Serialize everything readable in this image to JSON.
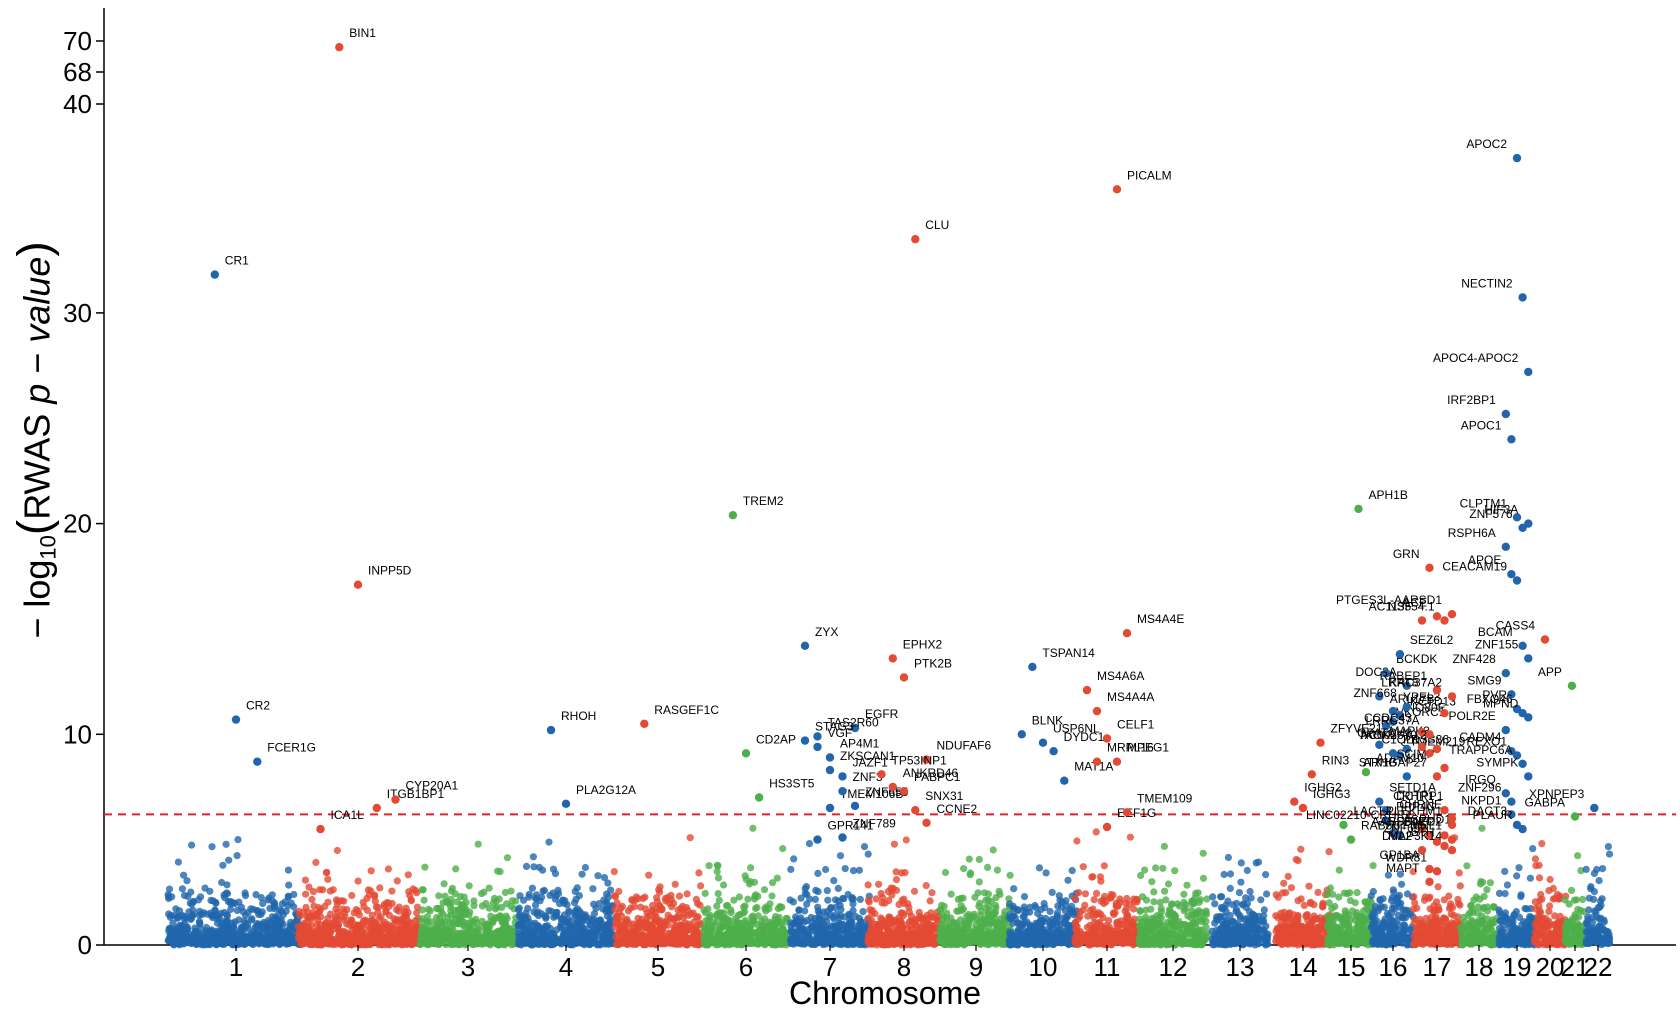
{
  "chart_data": {
    "type": "scatter",
    "subtype": "manhattan",
    "xlabel": "Chromosome",
    "ylabel_parts": {
      "prefix": "− log",
      "sub": "10",
      "open": "(",
      "main": "RWAS ",
      "p": "p",
      "dash": " − ",
      "value": "value",
      "close": ")"
    },
    "y_ticks": [
      "0",
      "10",
      "20",
      "30",
      "40",
      "68",
      "70"
    ],
    "y_axis_note": "broken axis: 0-30 linear, then 40, 68, 70 compressed",
    "threshold": 6.2,
    "threshold_color": "#e8202a",
    "colors": [
      "#2166ac",
      "#e34a33",
      "#4daf4a"
    ],
    "chromosomes": [
      "1",
      "2",
      "3",
      "4",
      "5",
      "6",
      "7",
      "8",
      "9",
      "10",
      "11",
      "12",
      "13",
      "14",
      "15",
      "16",
      "17",
      "18",
      "19",
      "20",
      "21",
      "22"
    ],
    "chrom_x_range": [
      [
        0.5,
        1.5
      ],
      [
        1.5,
        2.5
      ],
      [
        2.5,
        3.5
      ],
      [
        3.5,
        4.5
      ],
      [
        4.5,
        5.5
      ],
      [
        5.5,
        6.5
      ],
      [
        6.5,
        7.5
      ],
      [
        7.5,
        8.5
      ],
      [
        8.5,
        9.5
      ],
      [
        9.5,
        10.5
      ],
      [
        10.5,
        11.5
      ],
      [
        11.5,
        12.5
      ],
      [
        12.5,
        13.5
      ],
      [
        13.5,
        14.5
      ],
      [
        14.5,
        15.5
      ],
      [
        15.5,
        16.5
      ],
      [
        16.5,
        17.5
      ],
      [
        17.5,
        18.5
      ],
      [
        18.5,
        19.5
      ],
      [
        19.5,
        20.5
      ],
      [
        20.5,
        21.5
      ],
      [
        21.5,
        22.5
      ]
    ],
    "labeled_genes": [
      {
        "gene": "BIN1",
        "chr": "2",
        "y": 69.6
      },
      {
        "gene": "CR1",
        "chr": "1",
        "y": 31.8
      },
      {
        "gene": "INPP5D",
        "chr": "2",
        "y": 17.1
      },
      {
        "gene": "CR2",
        "chr": "1",
        "y": 10.7
      },
      {
        "gene": "FCER1G",
        "chr": "1",
        "y": 8.7
      },
      {
        "gene": "ITGB1BP1",
        "chr": "2",
        "y": 6.5
      },
      {
        "gene": "CYP20A1",
        "chr": "2",
        "y": 6.9
      },
      {
        "gene": "ICA1L",
        "chr": "2",
        "y": 5.5
      },
      {
        "gene": "RHOH",
        "chr": "4",
        "y": 10.2
      },
      {
        "gene": "PLA2G12A",
        "chr": "4",
        "y": 6.7
      },
      {
        "gene": "TREM2",
        "chr": "6",
        "y": 20.4
      },
      {
        "gene": "RASGEF1C",
        "chr": "5",
        "y": 10.5
      },
      {
        "gene": "CD2AP",
        "chr": "6",
        "y": 9.1
      },
      {
        "gene": "HS3ST5",
        "chr": "6",
        "y": 7.0
      },
      {
        "gene": "GPR141",
        "chr": "7",
        "y": 5.0
      },
      {
        "gene": "TMEM106B",
        "chr": "7",
        "y": 6.5
      },
      {
        "gene": "JAZF1",
        "chr": "7",
        "y": 8.0
      },
      {
        "gene": "EGFR",
        "chr": "7",
        "y": 10.3
      },
      {
        "gene": "STAG3",
        "chr": "7",
        "y": 9.7
      },
      {
        "gene": "VGF",
        "chr": "7",
        "y": 9.4
      },
      {
        "gene": "AP4M1",
        "chr": "7",
        "y": 8.9
      },
      {
        "gene": "ZNF3",
        "chr": "7",
        "y": 7.3
      },
      {
        "gene": "ZNF655",
        "chr": "7",
        "y": 6.6
      },
      {
        "gene": "ZYX",
        "chr": "7",
        "y": 14.2
      },
      {
        "gene": "EPHX2",
        "chr": "8",
        "y": 13.6
      },
      {
        "gene": "PTK2B",
        "chr": "8",
        "y": 12.7
      },
      {
        "gene": "CLU",
        "chr": "8",
        "y": 33.5
      },
      {
        "gene": "TAS2R60",
        "chr": "7",
        "y": 9.9
      },
      {
        "gene": "NDUFAF6",
        "chr": "8",
        "y": 8.8
      },
      {
        "gene": "TP53INP1",
        "chr": "8",
        "y": 8.1
      },
      {
        "gene": "ZKSCAN1",
        "chr": "7",
        "y": 8.3
      },
      {
        "gene": "ANKRD46",
        "chr": "8",
        "y": 7.5
      },
      {
        "gene": "PABPC1",
        "chr": "8",
        "y": 7.3
      },
      {
        "gene": "SNX31",
        "chr": "8",
        "y": 6.4
      },
      {
        "gene": "CCNE2",
        "chr": "8",
        "y": 5.8
      },
      {
        "gene": "ZNF789",
        "chr": "7",
        "y": 5.1
      },
      {
        "gene": "TSPAN14",
        "chr": "10",
        "y": 13.2
      },
      {
        "gene": "USP6NL",
        "chr": "10",
        "y": 9.6
      },
      {
        "gene": "DYDC1",
        "chr": "10",
        "y": 9.2
      },
      {
        "gene": "MAT1A",
        "chr": "10",
        "y": 7.8
      },
      {
        "gene": "BLNK",
        "chr": "10",
        "y": 10.0
      },
      {
        "gene": "MRPL16",
        "chr": "11",
        "y": 8.7
      },
      {
        "gene": "EEF1G",
        "chr": "11",
        "y": 5.6
      },
      {
        "gene": "PICALM",
        "chr": "11",
        "y": 35.9
      },
      {
        "gene": "MS4A4E",
        "chr": "11",
        "y": 14.8
      },
      {
        "gene": "MS4A6A",
        "chr": "11",
        "y": 12.1
      },
      {
        "gene": "MS4A4A",
        "chr": "11",
        "y": 11.1
      },
      {
        "gene": "CELF1",
        "chr": "11",
        "y": 9.8
      },
      {
        "gene": "MPEG1",
        "chr": "11",
        "y": 8.7
      },
      {
        "gene": "TMEM109",
        "chr": "11",
        "y": 6.3
      },
      {
        "gene": "PPP4C",
        "chr": "16",
        "y": 5.9
      },
      {
        "gene": "ASPHD1",
        "chr": "16",
        "y": 5.3
      },
      {
        "gene": "IGHG2",
        "chr": "14",
        "y": 6.8
      },
      {
        "gene": "IGHG3",
        "chr": "14",
        "y": 6.5
      },
      {
        "gene": "LACTB",
        "chr": "15",
        "y": 5.7
      },
      {
        "gene": "RAB8B",
        "chr": "15",
        "y": 5.0
      },
      {
        "gene": "KIF22",
        "chr": "16",
        "y": 5.2
      },
      {
        "gene": "GP1BA",
        "chr": "17",
        "y": 3.6
      },
      {
        "gene": "WDR81",
        "chr": "17",
        "y": 3.5
      },
      {
        "gene": "APH1B",
        "chr": "15",
        "y": 20.7
      },
      {
        "gene": "ADAM10",
        "chr": "15",
        "y": 8.2
      },
      {
        "gene": "RIN3",
        "chr": "14",
        "y": 8.1
      },
      {
        "gene": "STX1B",
        "chr": "16",
        "y": 8.0
      },
      {
        "gene": "SETD1A",
        "chr": "16",
        "y": 6.8
      },
      {
        "gene": "DCTPP1",
        "chr": "16",
        "y": 6.4
      },
      {
        "gene": "PRSS36",
        "chr": "16",
        "y": 9.1
      },
      {
        "gene": "TMEM219",
        "chr": "16",
        "y": 9.0
      },
      {
        "gene": "ZFYVE21",
        "chr": "14",
        "y": 9.6
      },
      {
        "gene": "TAOK2",
        "chr": "16",
        "y": 9.3
      },
      {
        "gene": "MAPK3",
        "chr": "16",
        "y": 9.5
      },
      {
        "gene": "VKORC1",
        "chr": "16",
        "y": 10.4
      },
      {
        "gene": "INO80E",
        "chr": "16",
        "y": 10.6
      },
      {
        "gene": "KCTD13",
        "chr": "16",
        "y": 10.9
      },
      {
        "gene": "DOC2A",
        "chr": "16",
        "y": 12.3
      },
      {
        "gene": "KAT8",
        "chr": "16",
        "y": 11.8
      },
      {
        "gene": "BCKDK",
        "chr": "16",
        "y": 12.9
      },
      {
        "gene": "YPEL3",
        "chr": "16",
        "y": 11.1
      },
      {
        "gene": "SCIMP",
        "chr": "17",
        "y": 8.4
      },
      {
        "gene": "CHRNE",
        "chr": "17",
        "y": 6.0
      },
      {
        "gene": "DVL2",
        "chr": "17",
        "y": 4.5
      },
      {
        "gene": "MAPT",
        "chr": "17",
        "y": 3.0
      },
      {
        "gene": "SEZ6L2",
        "chr": "16",
        "y": 13.8
      },
      {
        "gene": "ACE",
        "chr": "17",
        "y": 15.6
      },
      {
        "gene": "AC113554.1",
        "chr": "17",
        "y": 15.4
      },
      {
        "gene": "PTGES3L-AARSD1",
        "chr": "17",
        "y": 15.7
      },
      {
        "gene": "ZNF668",
        "chr": "16",
        "y": 11.3
      },
      {
        "gene": "CCDC43",
        "chr": "17",
        "y": 10.1
      },
      {
        "gene": "GRN",
        "chr": "17",
        "y": 17.9
      },
      {
        "gene": "RABEP1",
        "chr": "17",
        "y": 12.1
      },
      {
        "gene": "ARL17B",
        "chr": "17",
        "y": 11.0
      },
      {
        "gene": "LRRC37A2",
        "chr": "17",
        "y": 11.8
      },
      {
        "gene": "GPATCH8",
        "chr": "17",
        "y": 9.4
      },
      {
        "gene": "C1QL1",
        "chr": "17",
        "y": 9.1
      },
      {
        "gene": "ARHGAP27",
        "chr": "17",
        "y": 8.0
      },
      {
        "gene": "ZNF296",
        "chr": "19",
        "y": 6.8
      },
      {
        "gene": "CRHR1",
        "chr": "17",
        "y": 6.4
      },
      {
        "gene": "PLEKHM1",
        "chr": "17",
        "y": 5.7
      },
      {
        "gene": "LINC02210-CRHR1",
        "chr": "17",
        "y": 5.5
      },
      {
        "gene": "AARSD1",
        "chr": "17",
        "y": 5.2
      },
      {
        "gene": "ZNF652",
        "chr": "17",
        "y": 4.9
      },
      {
        "gene": "STH",
        "chr": "17",
        "y": 4.7
      },
      {
        "gene": "MAP3K14",
        "chr": "17",
        "y": 4.5
      },
      {
        "gene": "APOC2",
        "chr": "19",
        "y": 37.4
      },
      {
        "gene": "NECTIN2",
        "chr": "19",
        "y": 30.7
      },
      {
        "gene": "APOC4-APOC2",
        "chr": "19",
        "y": 27.2
      },
      {
        "gene": "IRF2BP1",
        "chr": "19",
        "y": 25.2
      },
      {
        "gene": "APOC1",
        "chr": "19",
        "y": 24.0
      },
      {
        "gene": "CLPTM1",
        "chr": "19",
        "y": 20.3
      },
      {
        "gene": "ZNF576",
        "chr": "19",
        "y": 19.8
      },
      {
        "gene": "HIF3A",
        "chr": "19",
        "y": 20.0
      },
      {
        "gene": "RSPH6A",
        "chr": "19",
        "y": 18.9
      },
      {
        "gene": "APOE",
        "chr": "19",
        "y": 17.6
      },
      {
        "gene": "CEACAM19",
        "chr": "19",
        "y": 17.3
      },
      {
        "gene": "NSF",
        "chr": "17",
        "y": 15.4
      },
      {
        "gene": "CASS4",
        "chr": "20",
        "y": 14.5
      },
      {
        "gene": "BCAM",
        "chr": "19",
        "y": 14.2
      },
      {
        "gene": "ZNF155",
        "chr": "19",
        "y": 13.6
      },
      {
        "gene": "ZNF428",
        "chr": "19",
        "y": 12.9
      },
      {
        "gene": "APP",
        "chr": "21",
        "y": 12.3
      },
      {
        "gene": "SMG9",
        "chr": "19",
        "y": 11.9
      },
      {
        "gene": "PVR",
        "chr": "19",
        "y": 11.2
      },
      {
        "gene": "FBXO46",
        "chr": "19",
        "y": 11.0
      },
      {
        "gene": "MPND",
        "chr": "19",
        "y": 10.8
      },
      {
        "gene": "POLR2E",
        "chr": "19",
        "y": 10.2
      },
      {
        "gene": "LRRC37A",
        "chr": "17",
        "y": 10.0
      },
      {
        "gene": "AC005670.2",
        "chr": "17",
        "y": 9.3
      },
      {
        "gene": "CADM4",
        "chr": "19",
        "y": 9.2
      },
      {
        "gene": "REXO1",
        "chr": "19",
        "y": 9.0
      },
      {
        "gene": "TRAPPC6A",
        "chr": "19",
        "y": 8.6
      },
      {
        "gene": "SYMPK",
        "chr": "19",
        "y": 8.0
      },
      {
        "gene": "IRGQ",
        "chr": "19",
        "y": 7.2
      },
      {
        "gene": "XPNPEP3",
        "chr": "22",
        "y": 6.5
      },
      {
        "gene": "NKPD1",
        "chr": "19",
        "y": 6.2
      },
      {
        "gene": "GABPA",
        "chr": "21",
        "y": 6.1
      },
      {
        "gene": "DACT3",
        "chr": "19",
        "y": 5.7
      },
      {
        "gene": "PLAUR",
        "chr": "19",
        "y": 5.5
      },
      {
        "gene": "SPPL2C",
        "chr": "17",
        "y": 5.2
      },
      {
        "gene": "FMNL1",
        "chr": "17",
        "y": 5.0
      }
    ]
  }
}
